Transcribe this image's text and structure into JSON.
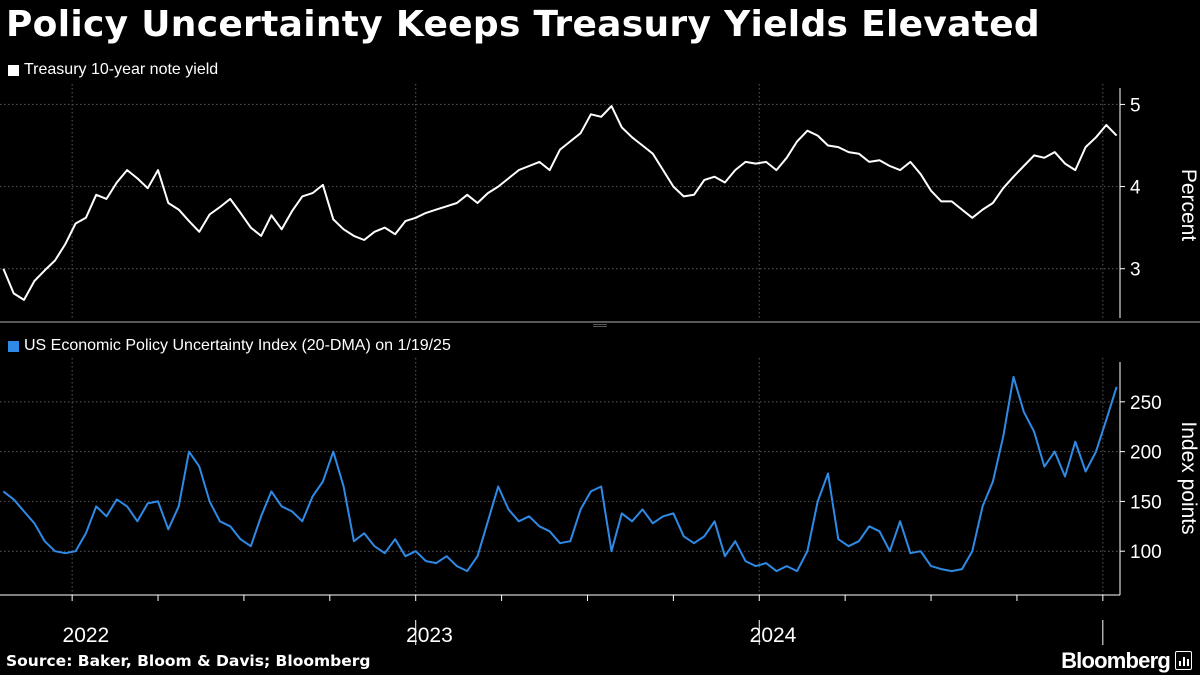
{
  "header": {
    "title": "Policy Uncertainty Keeps Treasury Yields Elevated"
  },
  "colors": {
    "yield_line": "#ffffff",
    "epu_line": "#2f8ae6",
    "background": "#000000"
  },
  "footer": {
    "source": "Source: Baker, Bloom & Davis; Bloomberg",
    "brand": "Bloomberg"
  },
  "chart_data": [
    {
      "type": "line",
      "title": "Treasury 10-year note yield",
      "legend": "Treasury 10-year note yield",
      "ylabel": "Percent",
      "ylim": [
        2.4,
        5.2
      ],
      "yticks": [
        3,
        4,
        5
      ],
      "x_unit": "decimal year",
      "xlim": [
        2021.79,
        2025.05
      ],
      "series": [
        {
          "name": "Treasury 10-year note yield",
          "x": [
            2021.8,
            2021.83,
            2021.86,
            2021.89,
            2021.92,
            2021.95,
            2021.98,
            2022.01,
            2022.04,
            2022.07,
            2022.1,
            2022.13,
            2022.16,
            2022.19,
            2022.22,
            2022.25,
            2022.28,
            2022.31,
            2022.34,
            2022.37,
            2022.4,
            2022.43,
            2022.46,
            2022.49,
            2022.52,
            2022.55,
            2022.58,
            2022.61,
            2022.64,
            2022.67,
            2022.7,
            2022.73,
            2022.76,
            2022.79,
            2022.82,
            2022.85,
            2022.88,
            2022.91,
            2022.94,
            2022.97,
            2023.0,
            2023.03,
            2023.06,
            2023.09,
            2023.12,
            2023.15,
            2023.18,
            2023.21,
            2023.24,
            2023.27,
            2023.3,
            2023.33,
            2023.36,
            2023.39,
            2023.42,
            2023.45,
            2023.48,
            2023.51,
            2023.54,
            2023.57,
            2023.6,
            2023.63,
            2023.66,
            2023.69,
            2023.72,
            2023.75,
            2023.78,
            2023.81,
            2023.84,
            2023.87,
            2023.9,
            2023.93,
            2023.96,
            2023.99,
            2024.02,
            2024.05,
            2024.08,
            2024.11,
            2024.14,
            2024.17,
            2024.2,
            2024.23,
            2024.26,
            2024.29,
            2024.32,
            2024.35,
            2024.38,
            2024.41,
            2024.44,
            2024.47,
            2024.5,
            2024.53,
            2024.56,
            2024.59,
            2024.62,
            2024.65,
            2024.68,
            2024.71,
            2024.74,
            2024.77,
            2024.8,
            2024.83,
            2024.86,
            2024.89,
            2024.92,
            2024.95,
            2024.98,
            2025.01,
            2025.04
          ],
          "values": [
            3.0,
            2.7,
            2.62,
            2.85,
            2.98,
            3.1,
            3.3,
            3.55,
            3.62,
            3.9,
            3.85,
            4.05,
            4.2,
            4.1,
            3.98,
            4.2,
            3.8,
            3.72,
            3.58,
            3.45,
            3.66,
            3.75,
            3.85,
            3.68,
            3.5,
            3.4,
            3.65,
            3.48,
            3.7,
            3.88,
            3.92,
            4.02,
            3.6,
            3.48,
            3.4,
            3.35,
            3.45,
            3.5,
            3.42,
            3.58,
            3.62,
            3.68,
            3.72,
            3.76,
            3.8,
            3.9,
            3.8,
            3.92,
            4.0,
            4.1,
            4.2,
            4.25,
            4.3,
            4.2,
            4.45,
            4.55,
            4.65,
            4.88,
            4.85,
            4.98,
            4.72,
            4.6,
            4.5,
            4.4,
            4.2,
            4.0,
            3.88,
            3.9,
            4.08,
            4.12,
            4.05,
            4.2,
            4.3,
            4.28,
            4.3,
            4.2,
            4.35,
            4.55,
            4.68,
            4.62,
            4.5,
            4.48,
            4.42,
            4.4,
            4.3,
            4.32,
            4.25,
            4.2,
            4.3,
            4.15,
            3.95,
            3.82,
            3.82,
            3.72,
            3.62,
            3.72,
            3.8,
            3.98,
            4.12,
            4.25,
            4.38,
            4.35,
            4.42,
            4.28,
            4.2,
            4.48,
            4.6,
            4.75,
            4.62
          ]
        }
      ]
    },
    {
      "type": "line",
      "title": "US Economic Policy Uncertainty Index (20-DMA) on 1/19/25",
      "legend": "US Economic Policy Uncertainty Index (20-DMA) on 1/19/25",
      "ylabel": "Index points",
      "ylim": [
        56,
        290
      ],
      "yticks": [
        100,
        150,
        200,
        250
      ],
      "x_unit": "decimal year",
      "xlim": [
        2021.79,
        2025.05
      ],
      "xticks": [
        "2022",
        "2023",
        "2024"
      ],
      "series": [
        {
          "name": "US Economic Policy Uncertainty Index (20-DMA)",
          "x": [
            2021.8,
            2021.83,
            2021.86,
            2021.89,
            2021.92,
            2021.95,
            2021.98,
            2022.01,
            2022.04,
            2022.07,
            2022.1,
            2022.13,
            2022.16,
            2022.19,
            2022.22,
            2022.25,
            2022.28,
            2022.31,
            2022.34,
            2022.37,
            2022.4,
            2022.43,
            2022.46,
            2022.49,
            2022.52,
            2022.55,
            2022.58,
            2022.61,
            2022.64,
            2022.67,
            2022.7,
            2022.73,
            2022.76,
            2022.79,
            2022.82,
            2022.85,
            2022.88,
            2022.91,
            2022.94,
            2022.97,
            2023.0,
            2023.03,
            2023.06,
            2023.09,
            2023.12,
            2023.15,
            2023.18,
            2023.21,
            2023.24,
            2023.27,
            2023.3,
            2023.33,
            2023.36,
            2023.39,
            2023.42,
            2023.45,
            2023.48,
            2023.51,
            2023.54,
            2023.57,
            2023.6,
            2023.63,
            2023.66,
            2023.69,
            2023.72,
            2023.75,
            2023.78,
            2023.81,
            2023.84,
            2023.87,
            2023.9,
            2023.93,
            2023.96,
            2023.99,
            2024.02,
            2024.05,
            2024.08,
            2024.11,
            2024.14,
            2024.17,
            2024.2,
            2024.23,
            2024.26,
            2024.29,
            2024.32,
            2024.35,
            2024.38,
            2024.41,
            2024.44,
            2024.47,
            2024.5,
            2024.53,
            2024.56,
            2024.59,
            2024.62,
            2024.65,
            2024.68,
            2024.71,
            2024.74,
            2024.77,
            2024.8,
            2024.83,
            2024.86,
            2024.89,
            2024.92,
            2024.95,
            2024.98,
            2025.01,
            2025.04
          ],
          "values": [
            160,
            152,
            140,
            128,
            110,
            100,
            98,
            100,
            118,
            145,
            135,
            152,
            145,
            130,
            148,
            150,
            122,
            145,
            200,
            185,
            150,
            130,
            125,
            112,
            105,
            135,
            160,
            145,
            140,
            130,
            155,
            170,
            200,
            165,
            110,
            118,
            105,
            98,
            112,
            95,
            100,
            90,
            88,
            95,
            85,
            80,
            95,
            130,
            165,
            142,
            130,
            135,
            125,
            120,
            108,
            110,
            142,
            160,
            165,
            100,
            138,
            130,
            142,
            128,
            135,
            138,
            115,
            108,
            115,
            130,
            95,
            110,
            90,
            85,
            88,
            80,
            85,
            80,
            100,
            150,
            178,
            112,
            105,
            110,
            125,
            120,
            100,
            130,
            98,
            100,
            85,
            82,
            80,
            82,
            100,
            145,
            170,
            215,
            275,
            240,
            220,
            185,
            200,
            175,
            210,
            180,
            200,
            232,
            265
          ]
        }
      ]
    }
  ]
}
